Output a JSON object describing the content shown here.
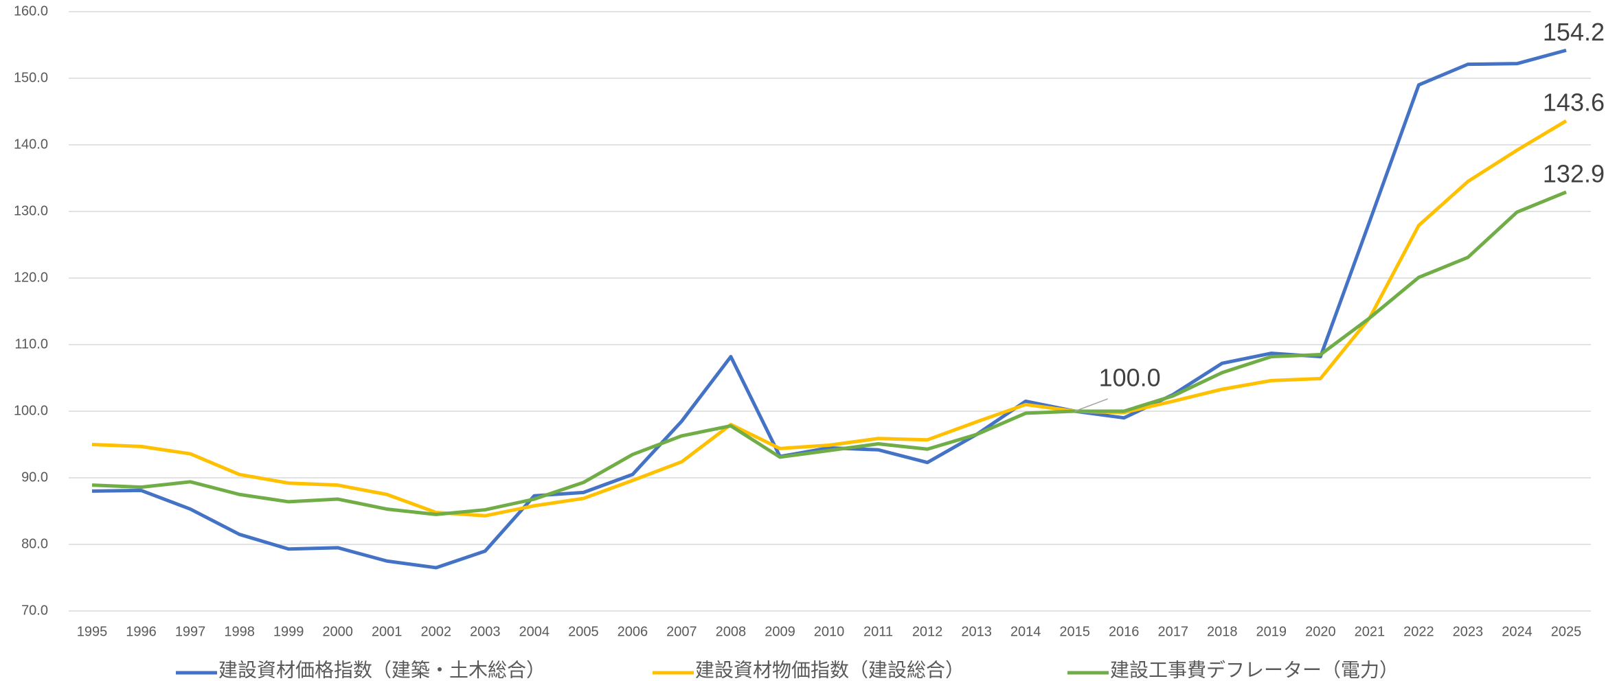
{
  "chart_data": {
    "type": "line",
    "categories": [
      "1995",
      "1996",
      "1997",
      "1998",
      "1999",
      "2000",
      "2001",
      "2002",
      "2003",
      "2004",
      "2005",
      "2006",
      "2007",
      "2008",
      "2009",
      "2010",
      "2011",
      "2012",
      "2013",
      "2014",
      "2015",
      "2016",
      "2017",
      "2018",
      "2019",
      "2020",
      "2021",
      "2022",
      "2023",
      "2024",
      "2025"
    ],
    "series": [
      {
        "name": "建設資材価格指数（建築・土木総合）",
        "color": "#4472c4",
        "values": [
          88.0,
          88.1,
          85.3,
          81.5,
          79.3,
          79.5,
          77.5,
          76.5,
          79.0,
          87.3,
          87.8,
          90.5,
          98.5,
          108.2,
          93.2,
          94.5,
          94.2,
          92.3,
          96.5,
          101.5,
          100.0,
          99.0,
          102.5,
          107.2,
          108.7,
          108.2,
          128.5,
          149.0,
          152.1,
          152.2,
          154.2
        ],
        "value_labels": [
          null,
          null,
          null,
          null,
          null,
          null,
          null,
          null,
          null,
          null,
          null,
          null,
          null,
          null,
          null,
          null,
          null,
          null,
          null,
          null,
          "100.0",
          null,
          null,
          null,
          null,
          null,
          null,
          null,
          null,
          null,
          "154.2"
        ]
      },
      {
        "name": "建設資材物価指数（建設総合）",
        "color": "#ffc000",
        "values": [
          95.0,
          94.7,
          93.6,
          90.5,
          89.2,
          88.9,
          87.5,
          84.8,
          84.3,
          85.8,
          86.9,
          89.6,
          92.4,
          98.0,
          94.4,
          94.9,
          95.9,
          95.7,
          98.4,
          101.0,
          100.0,
          99.8,
          101.5,
          103.3,
          104.6,
          104.9,
          114.0,
          127.9,
          134.5,
          139.2,
          143.6
        ],
        "value_labels": [
          null,
          null,
          null,
          null,
          null,
          null,
          null,
          null,
          null,
          null,
          null,
          null,
          null,
          null,
          null,
          null,
          null,
          null,
          null,
          null,
          null,
          null,
          null,
          null,
          null,
          null,
          null,
          null,
          null,
          null,
          "143.6"
        ]
      },
      {
        "name": "建設工事費デフレーター（電力）",
        "color": "#70ad47",
        "values": [
          88.9,
          88.6,
          89.4,
          87.5,
          86.4,
          86.8,
          85.3,
          84.5,
          85.2,
          86.8,
          89.3,
          93.5,
          96.3,
          97.8,
          93.1,
          94.1,
          95.1,
          94.3,
          96.5,
          99.7,
          100.0,
          100.0,
          102.3,
          105.8,
          108.2,
          108.5,
          114.0,
          120.1,
          123.1,
          129.9,
          132.9
        ],
        "value_labels": [
          null,
          null,
          null,
          null,
          null,
          null,
          null,
          null,
          null,
          null,
          null,
          null,
          null,
          null,
          null,
          null,
          null,
          null,
          null,
          null,
          null,
          null,
          null,
          null,
          null,
          null,
          null,
          null,
          null,
          null,
          "132.9"
        ]
      }
    ],
    "ylim": [
      70,
      160
    ],
    "yticks": [
      {
        "value": 70,
        "label": "70.0"
      },
      {
        "value": 80,
        "label": "80.0"
      },
      {
        "value": 90,
        "label": "90.0"
      },
      {
        "value": 100,
        "label": "100.0"
      },
      {
        "value": 110,
        "label": "110.0"
      },
      {
        "value": 120,
        "label": "120.0"
      },
      {
        "value": 130,
        "label": "130.0"
      },
      {
        "value": 140,
        "label": "140.0"
      },
      {
        "value": 150,
        "label": "150.0"
      },
      {
        "value": 160,
        "label": "160.0"
      }
    ],
    "grid": true,
    "legend": "bottom"
  }
}
